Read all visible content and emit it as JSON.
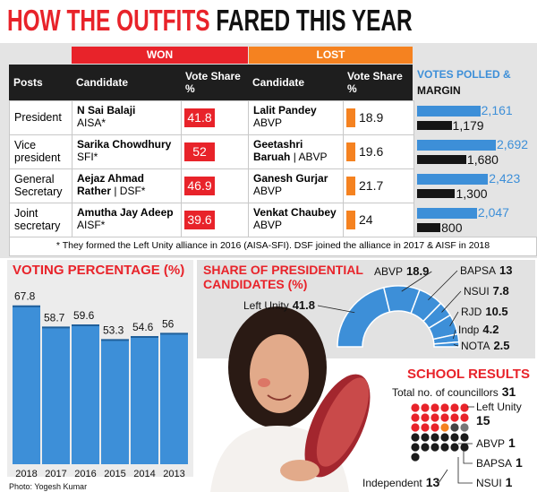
{
  "header": {
    "title_part1": "HOW THE OUTFITS",
    "title_part2": "FARED THIS YEAR"
  },
  "table": {
    "group_headers": [
      "WON",
      "LOST",
      "VOTES POLLED &",
      "MARGIN"
    ],
    "columns": [
      "Posts",
      "Candidate",
      "Vote Share %",
      "Candidate",
      "Vote Share %"
    ],
    "rows": [
      {
        "post": "President",
        "won": {
          "name": "N Sai Balaji",
          "party": "AISA*",
          "share": 41.8
        },
        "lost": {
          "name": "Lalit Pandey",
          "party": "ABVP",
          "share": 18.9
        },
        "votes": {
          "values": [
            2161,
            1179
          ],
          "value_labels": [
            "2,161",
            "1,179"
          ]
        }
      },
      {
        "post": "Vice president",
        "won": {
          "name": "Sarika Chowdhury",
          "party": "SFI*",
          "share": 52
        },
        "lost": {
          "name": "Geetashri Baruah",
          "party": "| ABVP",
          "share": 19.6
        },
        "votes": {
          "values": [
            2692,
            1680
          ],
          "value_labels": [
            "2,692",
            "1,680"
          ]
        }
      },
      {
        "post": "General Secretary",
        "won": {
          "name": "Aejaz Ahmad Rather",
          "party": "| DSF*",
          "share": 46.9
        },
        "lost": {
          "name": "Ganesh Gurjar",
          "party": "ABVP",
          "share": 21.7
        },
        "votes": {
          "values": [
            2423,
            1300
          ],
          "value_labels": [
            "2,423",
            "1,300"
          ]
        }
      },
      {
        "post": "Joint secretary",
        "won": {
          "name": "Amutha Jay Adeep",
          "party": "AISF*",
          "share": 39.6
        },
        "lost": {
          "name": "Venkat Chaubey",
          "party": "ABVP",
          "share": 24
        },
        "votes": {
          "values": [
            2047,
            800
          ],
          "value_labels": [
            "2,047",
            "800"
          ]
        }
      }
    ],
    "footnote": "* They formed the Left Unity alliance in 2016 (AISA-SFI). DSF joined the alliance in 2017 & AISF in 2018"
  },
  "chart_data": [
    {
      "type": "bar",
      "title": "VOTING PERCENTAGE (%)",
      "categories": [
        "2018",
        "2017",
        "2016",
        "2015",
        "2014",
        "2013"
      ],
      "values": [
        67.8,
        58.7,
        59.6,
        53.3,
        54.6,
        56
      ],
      "color": "#3d8fd8"
    },
    {
      "type": "pie",
      "title": "SHARE OF PRESIDENTIAL CANDIDATES (%)",
      "categories": [
        "Left Unity",
        "ABVP",
        "BAPSA",
        "NSUI",
        "RJD",
        "Indp",
        "NOTA"
      ],
      "values": [
        41.8,
        18.9,
        13,
        7.8,
        10.5,
        4.2,
        2.5
      ],
      "color": "#3d8fd8"
    },
    {
      "type": "waffle",
      "title": "SCHOOL RESULTS",
      "total_label": "Total no. of councillors",
      "total": 31,
      "categories": [
        "Left Unity",
        "ABVP",
        "BAPSA",
        "NSUI",
        "Independent"
      ],
      "values": [
        15,
        1,
        1,
        1,
        13
      ],
      "colors": [
        "#e8232a",
        "#f58220",
        "#444444",
        "#777777",
        "#1a1a1a"
      ]
    }
  ],
  "photo_credit": "Photo: Yogesh Kumar"
}
